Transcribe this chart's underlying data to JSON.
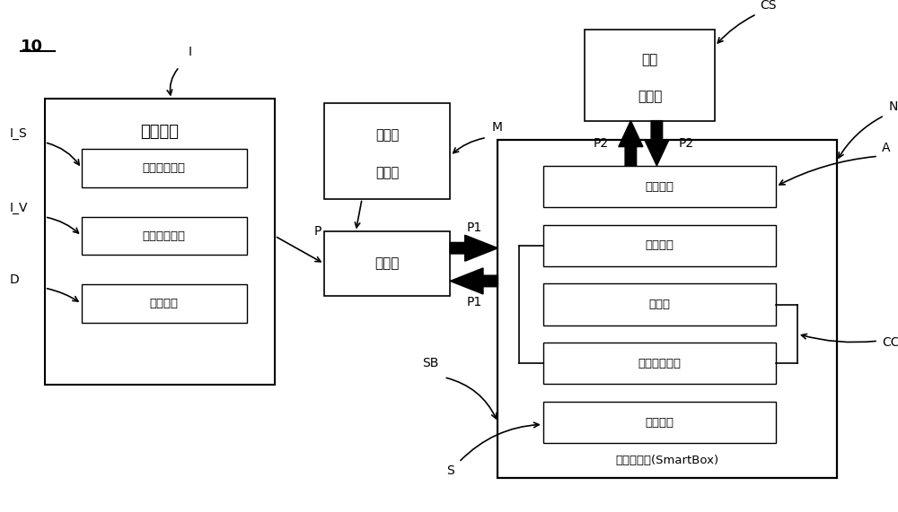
{
  "fig_width": 10.0,
  "fig_height": 5.71,
  "bg_color": "#ffffff",
  "label_10": "10",
  "label_I": "I",
  "label_IS": "I_S",
  "label_IV": "I_V",
  "label_D": "D",
  "label_P": "P",
  "label_M": "M",
  "label_P1": "P1",
  "label_P2": "P2",
  "label_N": "N",
  "label_A": "A",
  "label_CC": "CC",
  "label_CS": "CS",
  "label_SB": "SB",
  "label_S": "S",
  "box_hmi_title": "人機界面",
  "box_hmi_sub1": "參數設定界面",
  "box_hmi_sub2": "加工狀態界面",
  "box_hmi_sub3": "顏示模組",
  "box_sensor_line1": "感測器",
  "box_sensor_line2": "工具機",
  "box_controller": "控制器",
  "box_cloud_line1": "雲端",
  "box_cloud_line2": "伺服器",
  "box_smartbox_label": "智慧機上盒(SmartBox)",
  "box_comm": "通訊模組",
  "box_analysis": "分析模組",
  "box_processor": "處理器",
  "box_carbon": "碳排放計算器",
  "box_storage": "儲存模組"
}
